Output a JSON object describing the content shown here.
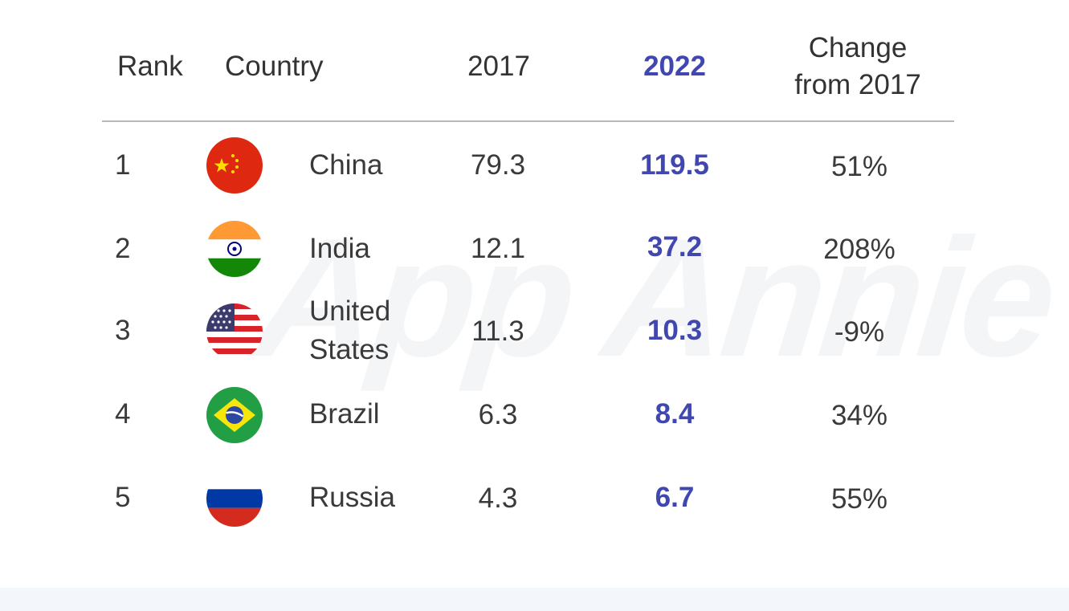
{
  "headers": {
    "rank": "Rank",
    "country": "Country",
    "year1": "2017",
    "year2": "2022",
    "change_line1": "Change",
    "change_line2": "from 2017"
  },
  "watermark": "App Annie",
  "rows": [
    {
      "rank": "1",
      "country": "China",
      "flag": "china-flag-icon",
      "v2017": "79.3",
      "v2022": "119.5",
      "change": "51%"
    },
    {
      "rank": "2",
      "country": "India",
      "flag": "india-flag-icon",
      "v2017": "12.1",
      "v2022": "37.2",
      "change": "208%"
    },
    {
      "rank": "3",
      "country_line1": "United",
      "country_line2": "States",
      "flag": "us-flag-icon",
      "v2017": "11.3",
      "v2022": "10.3",
      "change": "-9%"
    },
    {
      "rank": "4",
      "country": "Brazil",
      "flag": "brazil-flag-icon",
      "v2017": "6.3",
      "v2022": "8.4",
      "change": "34%"
    },
    {
      "rank": "5",
      "country": "Russia",
      "flag": "russia-flag-icon",
      "v2017": "4.3",
      "v2022": "6.7",
      "change": "55%"
    }
  ],
  "colors": {
    "accent": "#4147b0",
    "text": "#3a3a3a",
    "rule": "#b8b8b8"
  },
  "chart_data": {
    "type": "table",
    "columns": [
      "Rank",
      "Country",
      "2017",
      "2022",
      "Change from 2017"
    ],
    "rows": [
      [
        1,
        "China",
        79.3,
        119.5,
        "51%"
      ],
      [
        2,
        "India",
        12.1,
        37.2,
        "208%"
      ],
      [
        3,
        "United States",
        11.3,
        10.3,
        "-9%"
      ],
      [
        4,
        "Brazil",
        6.3,
        8.4,
        "34%"
      ],
      [
        5,
        "Russia",
        4.3,
        6.7,
        "55%"
      ]
    ]
  }
}
